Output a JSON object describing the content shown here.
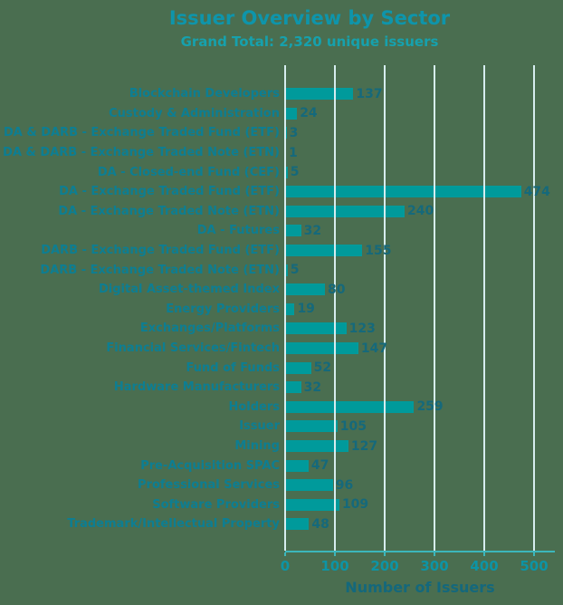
{
  "chart_data": {
    "type": "bar",
    "orientation": "horizontal",
    "title": "Issuer Overview by Sector",
    "subtitle": "Grand Total: 2,320 unique issuers",
    "xlabel": "Number of Issuers",
    "ylabel": "",
    "xlim": [
      0,
      540
    ],
    "xticks": [
      0,
      100,
      200,
      300,
      400,
      500
    ],
    "grid": true,
    "legend": false,
    "grand_total": 2320,
    "categories": [
      "Blockchain Developers",
      "Custody & Administration",
      "DA & DARB - Exchange Traded Fund (ETF)",
      "DA & DARB - Exchange Traded Note (ETN)",
      "DA - Closed-end Fund (CEF)",
      "DA - Exchange Traded Fund (ETF)",
      "DA - Exchange Traded Note (ETN)",
      "DA - Futures",
      "DARB - Exchange Traded Fund (ETF)",
      "DARB - Exchange Traded Note (ETN)",
      "Digital Asset-themed Index",
      "Energy Providers",
      "Exchanges/Platforms",
      "Financial Services/Fintech",
      "Fund of Funds",
      "Hardware Manufacturers",
      "Holders",
      "Issuer",
      "Mining",
      "Pre-Acquisition SPAC",
      "Professional Services",
      "Software Providers",
      "Trademark/Intellectual Property"
    ],
    "values": [
      137,
      24,
      3,
      1,
      5,
      474,
      240,
      32,
      155,
      5,
      80,
      19,
      123,
      147,
      52,
      32,
      259,
      105,
      127,
      47,
      96,
      109,
      48
    ],
    "colors": {
      "background": "#4a6e50",
      "bar": "#009a9b",
      "gridline": "#d6edef",
      "axis_line": "#3cb7bb",
      "title": "#0e95ab",
      "subtitle": "#16a1ad",
      "category_label": "#0d7e92",
      "value_label": "#15697b",
      "tick_label": "#0d94a5",
      "axis_title": "#14687c"
    }
  }
}
